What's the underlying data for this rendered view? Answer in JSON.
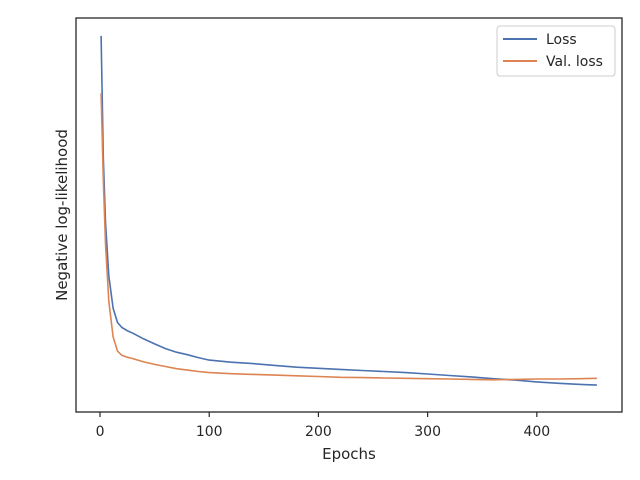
{
  "chart_data": {
    "type": "line",
    "title": "",
    "xlabel": "Epochs",
    "ylabel": "Negative log-likelihood",
    "xlim": [
      -22,
      478
    ],
    "ylim": [
      -0.05,
      1.05
    ],
    "x_ticks": [
      0,
      100,
      200,
      300,
      400
    ],
    "y_ticks": [],
    "y_tick_labels_shown": false,
    "grid": false,
    "legend_position": "top-right",
    "series": [
      {
        "name": "Loss",
        "color": "#4c72b0",
        "x": [
          1,
          3,
          5,
          8,
          12,
          16,
          20,
          25,
          30,
          40,
          50,
          60,
          70,
          80,
          90,
          100,
          120,
          140,
          160,
          180,
          200,
          220,
          240,
          260,
          280,
          300,
          320,
          340,
          360,
          380,
          400,
          420,
          440,
          455
        ],
        "y": [
          1.0,
          0.66,
          0.48,
          0.33,
          0.24,
          0.2,
          0.186,
          0.177,
          0.17,
          0.154,
          0.14,
          0.127,
          0.117,
          0.11,
          0.102,
          0.095,
          0.089,
          0.085,
          0.08,
          0.075,
          0.072,
          0.069,
          0.066,
          0.063,
          0.06,
          0.056,
          0.052,
          0.048,
          0.043,
          0.039,
          0.034,
          0.03,
          0.027,
          0.025
        ]
      },
      {
        "name": "Val. loss",
        "color": "#dd8452",
        "x": [
          1,
          3,
          5,
          8,
          12,
          16,
          20,
          25,
          30,
          40,
          50,
          60,
          70,
          80,
          90,
          100,
          120,
          140,
          160,
          180,
          200,
          220,
          240,
          260,
          280,
          300,
          320,
          340,
          360,
          380,
          400,
          420,
          440,
          455
        ],
        "y": [
          0.84,
          0.6,
          0.42,
          0.26,
          0.16,
          0.12,
          0.108,
          0.103,
          0.099,
          0.09,
          0.083,
          0.077,
          0.071,
          0.067,
          0.063,
          0.06,
          0.057,
          0.055,
          0.053,
          0.051,
          0.049,
          0.047,
          0.046,
          0.045,
          0.044,
          0.043,
          0.042,
          0.041,
          0.04,
          0.041,
          0.042,
          0.042,
          0.043,
          0.044
        ]
      }
    ]
  }
}
